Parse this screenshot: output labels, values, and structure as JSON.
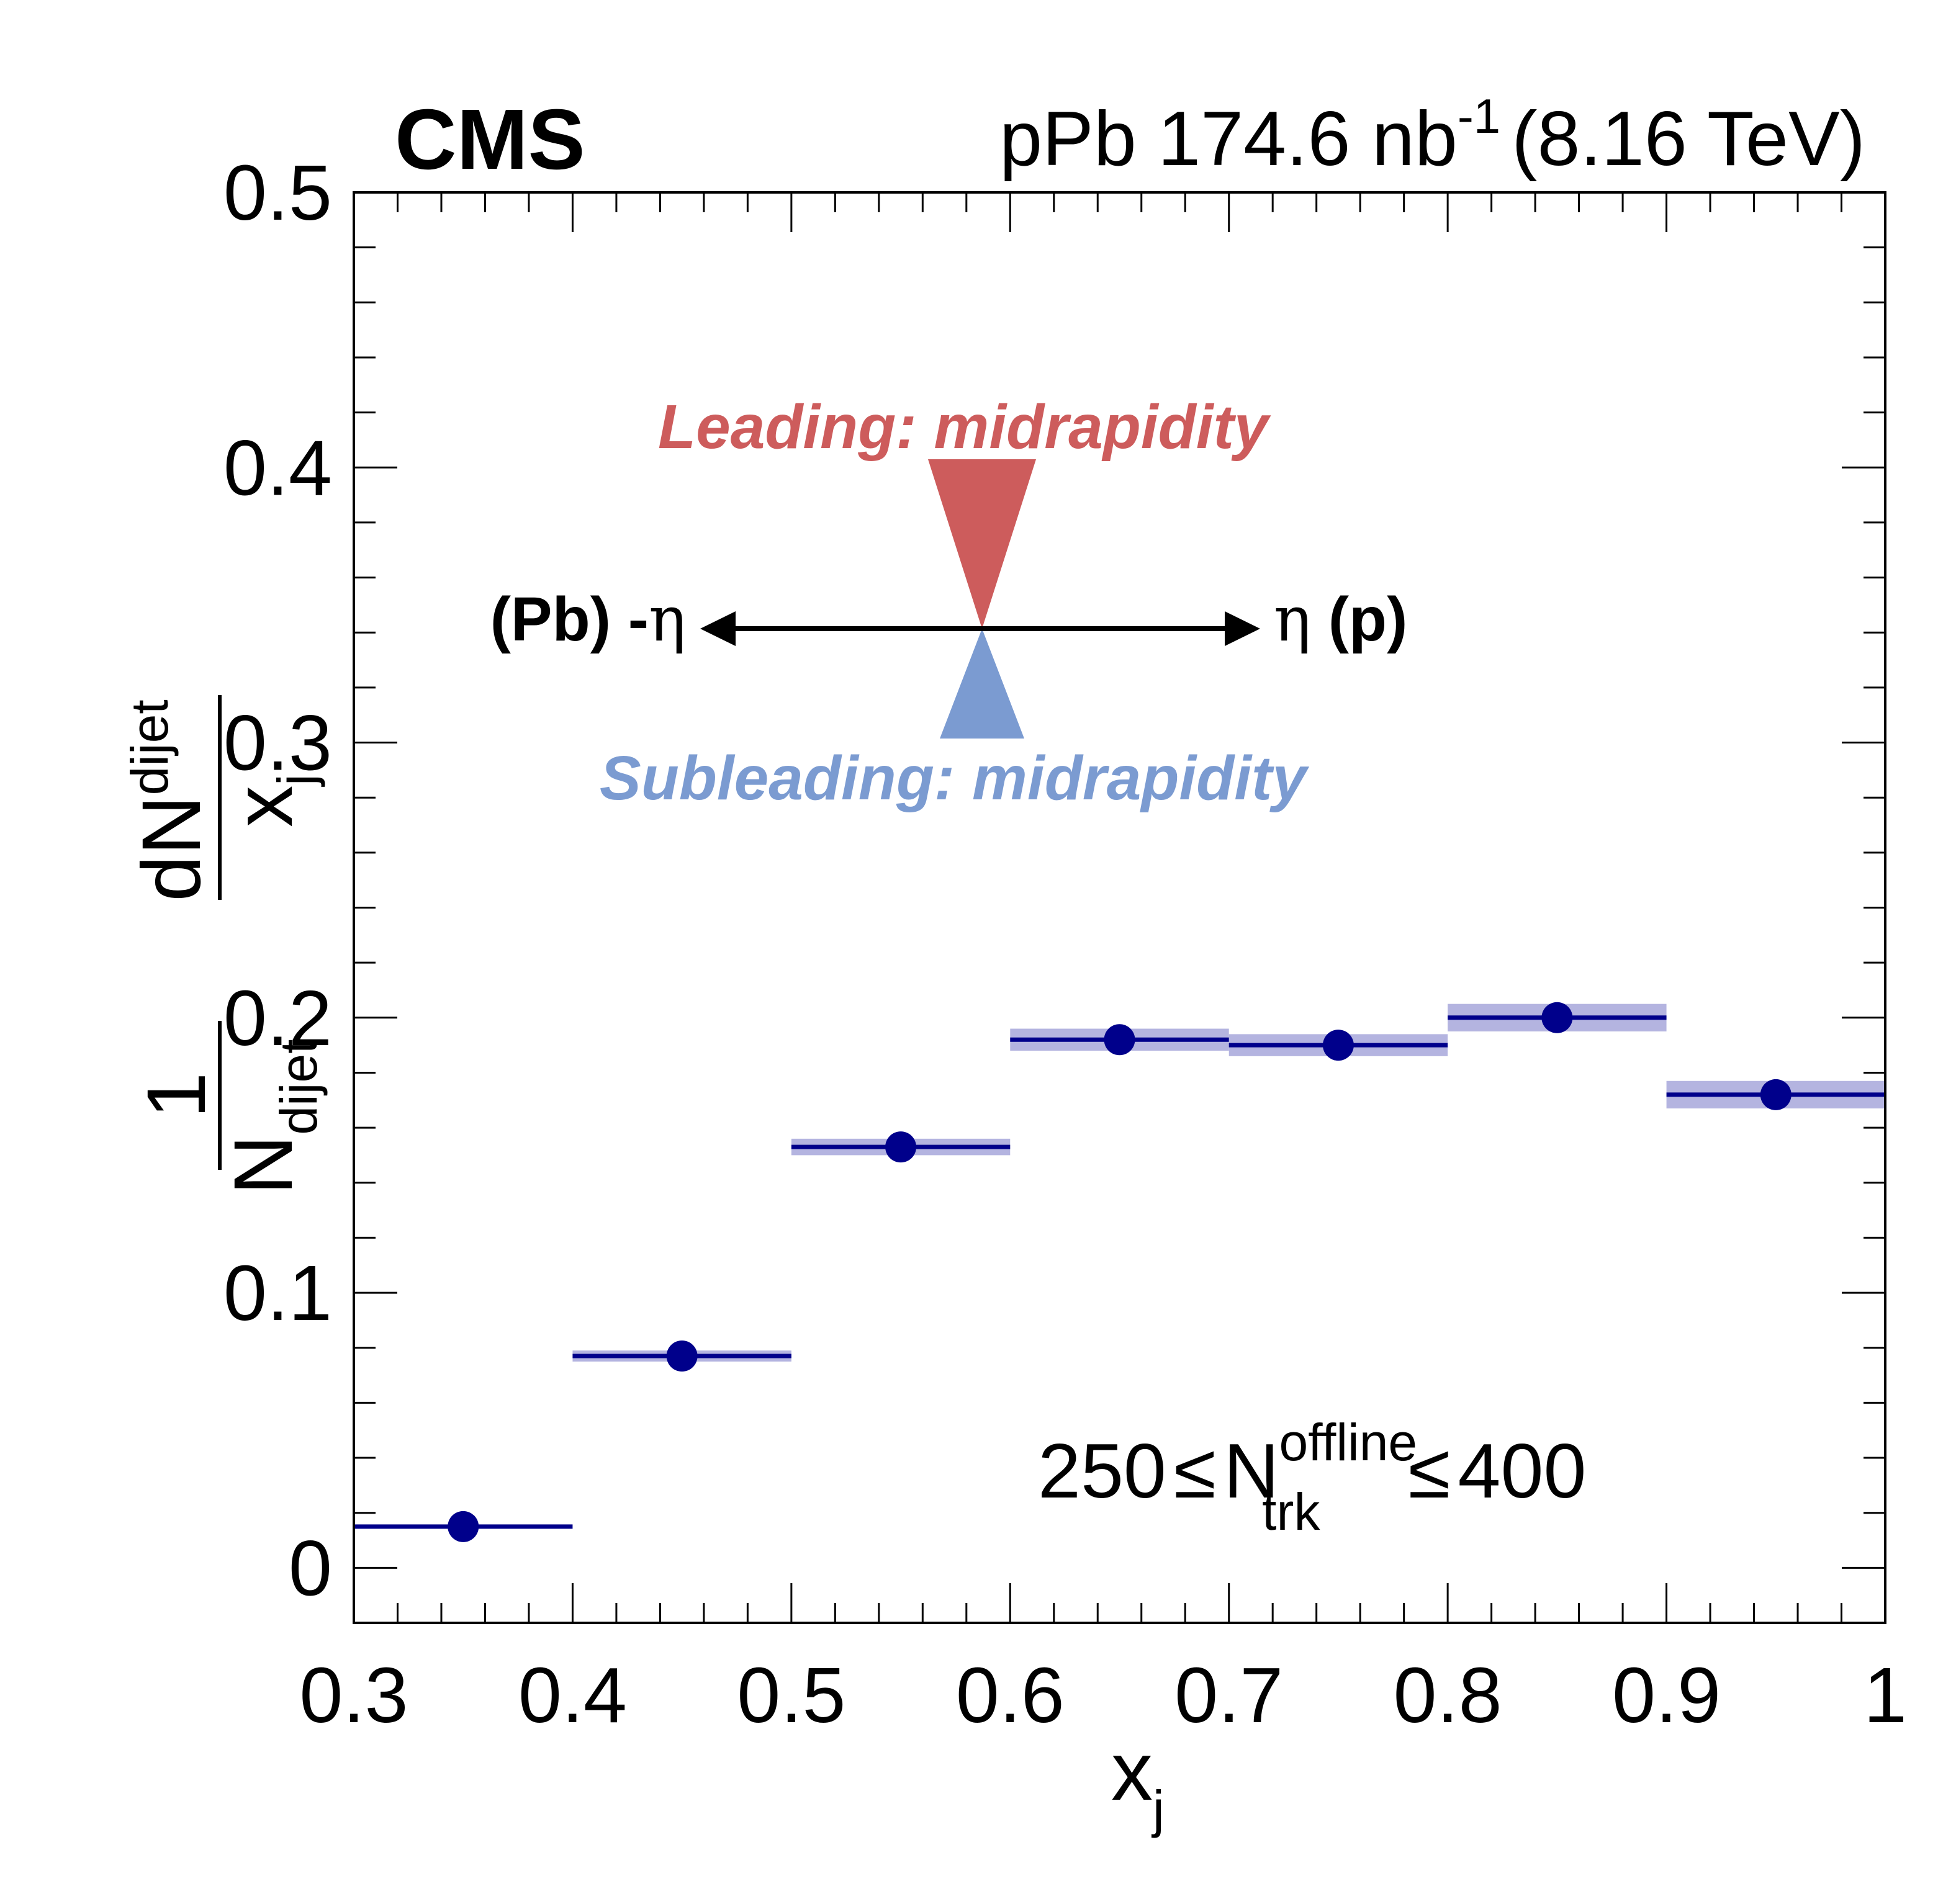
{
  "header": {
    "experiment": "CMS",
    "lumi_main": "pPb 174.6 nb",
    "lumi_sup": "-1",
    "energy": "(8.16 TeV)"
  },
  "annotations": {
    "leading": "Leading: midrapidity",
    "subleading": "Subleading: midrapidity",
    "left_arrow_bold": "(Pb) -",
    "left_arrow_eta": "η",
    "right_arrow_eta": "η",
    "right_arrow_bold": " (p)",
    "leading_color": "#cd5c5c",
    "subleading_color": "#7b9bd1"
  },
  "multiplicity_cut": {
    "low": "250",
    "op1": "≤",
    "N": "N",
    "sup": "offline",
    "sub": "trk",
    "op2": "≤",
    "high": "400"
  },
  "axes": {
    "x_title_main": "x",
    "x_title_sub": "j",
    "y_one": "1",
    "y_den_main": "N",
    "y_den_sub": "dijet",
    "y_num_main": "dN",
    "y_num_sub": "dijet",
    "y_xj_main": "x",
    "y_xj_sub": "j"
  },
  "chart_data": {
    "type": "scatter",
    "x_title": "x_j",
    "y_title": "1/N_dijet dN_dijet/x_j",
    "xlim": [
      0.3,
      1.0
    ],
    "ylim": [
      -0.02,
      0.5
    ],
    "x_ticks": [
      0.3,
      0.4,
      0.5,
      0.6,
      0.7,
      0.8,
      0.9,
      1.0
    ],
    "x_tick_labels": [
      "0.3",
      "0.4",
      "0.5",
      "0.6",
      "0.7",
      "0.8",
      "0.9",
      "1"
    ],
    "y_ticks": [
      0,
      0.1,
      0.2,
      0.3,
      0.4,
      0.5
    ],
    "y_tick_labels": [
      "0",
      "0.1",
      "0.2",
      "0.3",
      "0.4",
      "0.5"
    ],
    "marker_color": "#00008b",
    "band_color": "#b4b4e0",
    "series": [
      {
        "bins": [
          {
            "xlo": 0.3,
            "xhi": 0.4,
            "x": 0.35,
            "y": 0.015,
            "syst": 0.0
          },
          {
            "xlo": 0.4,
            "xhi": 0.5,
            "x": 0.45,
            "y": 0.077,
            "syst": 0.002
          },
          {
            "xlo": 0.5,
            "xhi": 0.6,
            "x": 0.55,
            "y": 0.153,
            "syst": 0.003
          },
          {
            "xlo": 0.6,
            "xhi": 0.7,
            "x": 0.65,
            "y": 0.192,
            "syst": 0.004
          },
          {
            "xlo": 0.7,
            "xhi": 0.8,
            "x": 0.75,
            "y": 0.19,
            "syst": 0.004
          },
          {
            "xlo": 0.8,
            "xhi": 0.9,
            "x": 0.85,
            "y": 0.2,
            "syst": 0.005
          },
          {
            "xlo": 0.9,
            "xhi": 1.0,
            "x": 0.95,
            "y": 0.172,
            "syst": 0.005
          }
        ]
      }
    ]
  }
}
